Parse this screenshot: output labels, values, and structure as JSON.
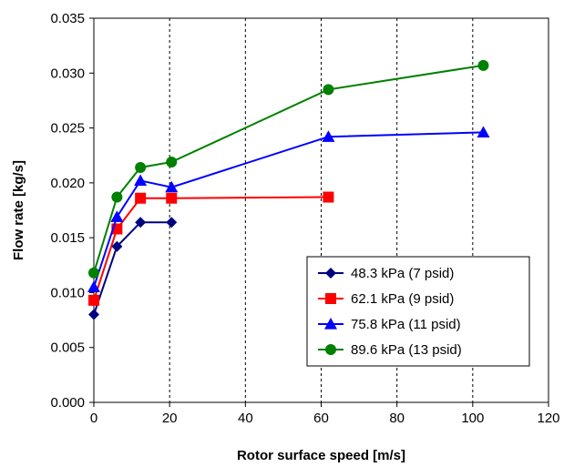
{
  "chart_data": {
    "type": "line",
    "xlabel": "Rotor surface speed [m/s]",
    "ylabel": "Flow rate [kg/s]",
    "xlim": [
      0,
      120
    ],
    "ylim": [
      0,
      0.035
    ],
    "x_ticks": [
      "0",
      "20",
      "40",
      "60",
      "80",
      "100",
      "120"
    ],
    "y_ticks": [
      "0.000",
      "0.005",
      "0.010",
      "0.015",
      "0.020",
      "0.025",
      "0.030",
      "0.035"
    ],
    "grid": "vertical dashed",
    "legend_position": "bottom-right",
    "series": [
      {
        "name": "48.3 kPa (7 psid)",
        "color": "#000080",
        "marker": "diamond",
        "points": [
          [
            0,
            0.008
          ],
          [
            6.1,
            0.0142
          ],
          [
            12.3,
            0.0164
          ],
          [
            20.5,
            0.0164
          ]
        ]
      },
      {
        "name": "62.1 kPa (9 psid)",
        "color": "#ff0000",
        "marker": "square",
        "points": [
          [
            0,
            0.0093
          ],
          [
            6.1,
            0.0158
          ],
          [
            12.3,
            0.0186
          ],
          [
            20.5,
            0.0186
          ],
          [
            61.9,
            0.0187
          ]
        ]
      },
      {
        "name": "75.8 kPa (11 psid)",
        "color": "#0000ff",
        "marker": "triangle",
        "points": [
          [
            0,
            0.0105
          ],
          [
            6.1,
            0.0169
          ],
          [
            12.3,
            0.0202
          ],
          [
            20.5,
            0.0196
          ],
          [
            61.9,
            0.0242
          ],
          [
            102.8,
            0.0246
          ]
        ]
      },
      {
        "name": "89.6 kPa (13 psid)",
        "color": "#008000",
        "marker": "circle",
        "points": [
          [
            0,
            0.0118
          ],
          [
            6.1,
            0.0187
          ],
          [
            12.3,
            0.0214
          ],
          [
            20.5,
            0.0219
          ],
          [
            61.9,
            0.0285
          ],
          [
            102.8,
            0.0307
          ]
        ]
      }
    ]
  }
}
